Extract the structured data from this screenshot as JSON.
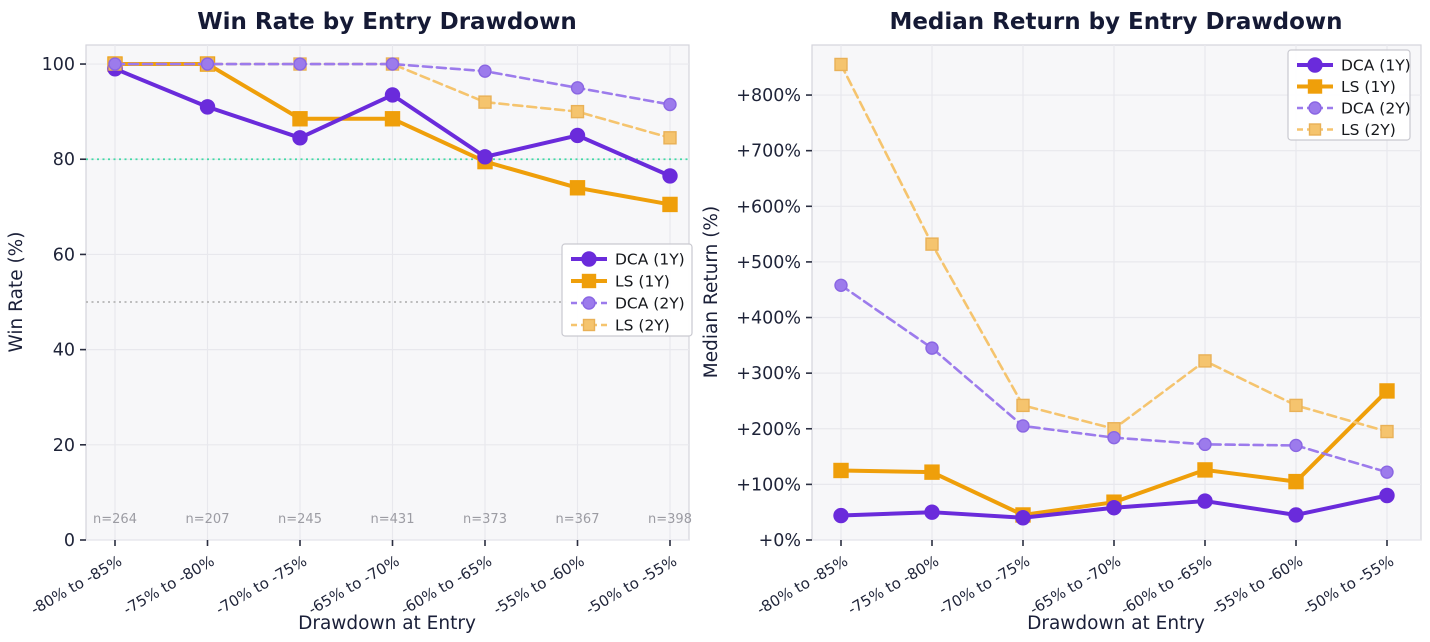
{
  "style": {
    "plot_bg": "#F7F7F9",
    "grid_color": "#E8E8ED",
    "spine_color": "#D4D4DB",
    "tick_color": "#2A2E40",
    "title_color": "#151A35",
    "axis_text_color": "#1E2338",
    "muted_text_color": "#9C9CA3",
    "legend_border": "#C9C9D0"
  },
  "chart_data": [
    {
      "type": "line",
      "title": "Win Rate by Entry Drawdown",
      "xlabel": "Drawdown at Entry",
      "ylabel": "Win Rate (%)",
      "categories": [
        "-80% to -85%",
        "-75% to -80%",
        "-70% to -75%",
        "-65% to -70%",
        "-60% to -65%",
        "-55% to -60%",
        "-50% to -55%"
      ],
      "series": [
        {
          "name": "DCA (1Y)",
          "values": [
            99,
            91,
            84.5,
            93.5,
            80.5,
            85,
            76.5
          ],
          "color": "#6A2BDB",
          "edge": "#6A2BDB",
          "style": "solid",
          "marker": "circle"
        },
        {
          "name": "LS (1Y)",
          "values": [
            100,
            100,
            88.5,
            88.5,
            79.5,
            74,
            70.5
          ],
          "color": "#EF9F0A",
          "edge": "#EF9F0A",
          "style": "solid",
          "marker": "square"
        },
        {
          "name": "DCA (2Y)",
          "values": [
            100,
            100,
            100,
            100,
            98.5,
            95,
            91.5
          ],
          "color": "#9C7BEC",
          "edge": "#8A66E3",
          "style": "dashed",
          "marker": "circle"
        },
        {
          "name": "LS (2Y)",
          "values": [
            100,
            100,
            100,
            100,
            92,
            90,
            84.5
          ],
          "color": "#F5C46E",
          "edge": "#E9B157",
          "style": "dashed",
          "marker": "square"
        }
      ],
      "ylim": [
        0,
        104
      ],
      "yticks": [
        0,
        20,
        40,
        60,
        80,
        100
      ],
      "ytick_labels": [
        "0",
        "20",
        "40",
        "60",
        "80",
        "100"
      ],
      "reference_lines": [
        {
          "y": 80,
          "color": "#43D9A7",
          "style": "dotted"
        },
        {
          "y": 50,
          "color": "#B5B5B5",
          "style": "dotted"
        }
      ],
      "sample_labels": [
        "n=264",
        "n=207",
        "n=245",
        "n=431",
        "n=373",
        "n=367",
        "n=398"
      ],
      "legend_position": "center right",
      "grid": true
    },
    {
      "type": "line",
      "title": "Median Return by Entry Drawdown",
      "xlabel": "Drawdown at Entry",
      "ylabel": "Median Return (%)",
      "categories": [
        "-80% to -85%",
        "-75% to -80%",
        "-70% to -75%",
        "-65% to -70%",
        "-60% to -65%",
        "-55% to -60%",
        "-50% to -55%"
      ],
      "series": [
        {
          "name": "DCA (1Y)",
          "values": [
            44,
            50,
            40,
            58,
            70,
            45,
            80
          ],
          "color": "#6A2BDB",
          "edge": "#6A2BDB",
          "style": "solid",
          "marker": "circle"
        },
        {
          "name": "LS (1Y)",
          "values": [
            125,
            122,
            45,
            68,
            126,
            105,
            268
          ],
          "color": "#EF9F0A",
          "edge": "#EF9F0A",
          "style": "solid",
          "marker": "square"
        },
        {
          "name": "DCA (2Y)",
          "values": [
            458,
            345,
            205,
            184,
            172,
            170,
            122
          ],
          "color": "#9C7BEC",
          "edge": "#8A66E3",
          "style": "dashed",
          "marker": "circle"
        },
        {
          "name": "LS (2Y)",
          "values": [
            855,
            532,
            242,
            200,
            322,
            242,
            195
          ],
          "color": "#F5C46E",
          "edge": "#E9B157",
          "style": "dashed",
          "marker": "square"
        }
      ],
      "ylim": [
        0,
        890
      ],
      "yticks": [
        0,
        100,
        200,
        300,
        400,
        500,
        600,
        700,
        800
      ],
      "ytick_labels": [
        "+0%",
        "+100%",
        "+200%",
        "+300%",
        "+400%",
        "+500%",
        "+600%",
        "+700%",
        "+800%"
      ],
      "reference_lines": [],
      "sample_labels": [],
      "legend_position": "upper right",
      "grid": true
    }
  ]
}
